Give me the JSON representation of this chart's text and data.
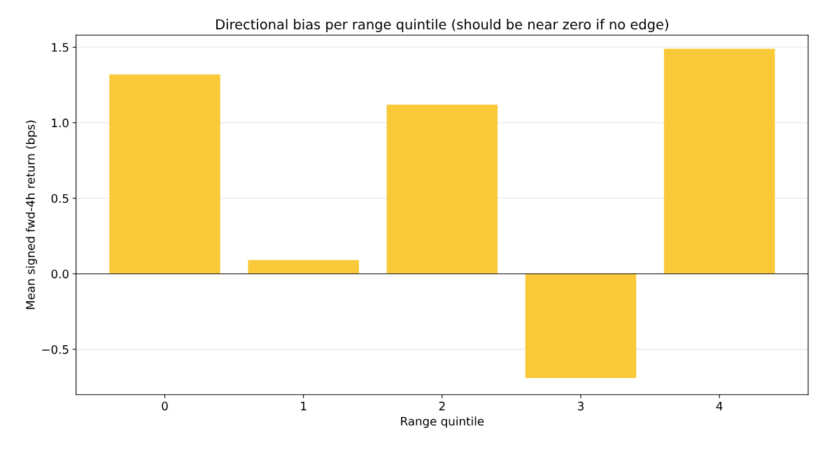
{
  "chart_data": {
    "type": "bar",
    "title": "Directional bias per range quintile (should be near zero if no edge)",
    "xlabel": "Range quintile",
    "ylabel": "Mean signed fwd-4h return (bps)",
    "categories": [
      "0",
      "1",
      "2",
      "3",
      "4"
    ],
    "values": [
      1.32,
      0.09,
      1.12,
      -0.69,
      1.49
    ],
    "color": "#f9c93a",
    "ylim": [
      -0.8,
      1.58
    ],
    "yticks": [
      {
        "value": -0.5,
        "label": "−0.5"
      },
      {
        "value": 0,
        "label": "0.0"
      },
      {
        "value": 0.5,
        "label": "0.5"
      },
      {
        "value": 1.0,
        "label": "1.0"
      },
      {
        "value": 1.5,
        "label": "1.5"
      }
    ],
    "ref_lines": [
      {
        "axis": "y",
        "value": 0,
        "color": "#000000"
      }
    ],
    "grid": "y"
  }
}
